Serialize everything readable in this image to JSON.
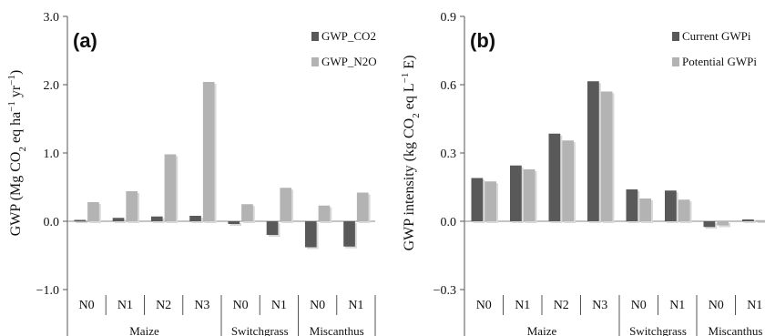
{
  "chart_data": [
    {
      "type": "bar",
      "panel_label": "(a)",
      "ylabel": "GWP (Mg CO2 eq ha−1 yr−1)",
      "ylim": [
        -1.0,
        3.0
      ],
      "yticks": [
        "−1.0",
        "0.0",
        "1.0",
        "2.0",
        "3.0"
      ],
      "ytick_values": [
        -1.0,
        0.0,
        1.0,
        2.0,
        3.0
      ],
      "categories": [
        "N0",
        "N1",
        "N2",
        "N3",
        "N0",
        "N1",
        "N0",
        "N1"
      ],
      "groups": [
        {
          "name": "Maize",
          "count": 4
        },
        {
          "name": "Switchgrass",
          "count": 2
        },
        {
          "name": "Miscanthus",
          "count": 2
        }
      ],
      "series": [
        {
          "name": "GWP_CO2",
          "color": "#595959",
          "values": [
            0.02,
            0.05,
            0.07,
            0.08,
            -0.04,
            -0.2,
            -0.38,
            -0.37
          ]
        },
        {
          "name": "GWP_N2O",
          "color": "#b3b3b3",
          "values": [
            0.28,
            0.44,
            0.98,
            2.04,
            0.25,
            0.49,
            0.23,
            0.42
          ]
        }
      ],
      "grid": false,
      "legend": "top-right"
    },
    {
      "type": "bar",
      "panel_label": "(b)",
      "ylabel": "GWP intensity (kg CO2 eq L−1 E)",
      "ylim": [
        -0.3,
        0.9
      ],
      "yticks": [
        "−0.3",
        "0.0",
        "0.3",
        "0.6",
        "0.9"
      ],
      "ytick_values": [
        -0.3,
        0.0,
        0.3,
        0.6,
        0.9
      ],
      "categories": [
        "N0",
        "N1",
        "N2",
        "N3",
        "N0",
        "N1",
        "N0",
        "N1"
      ],
      "groups": [
        {
          "name": "Maize",
          "count": 4
        },
        {
          "name": "Switchgrass",
          "count": 2
        },
        {
          "name": "Miscanthus",
          "count": 2
        }
      ],
      "series": [
        {
          "name": "Current GWPi",
          "color": "#595959",
          "values": [
            0.19,
            0.245,
            0.385,
            0.615,
            0.14,
            0.135,
            -0.025,
            0.008
          ]
        },
        {
          "name": "Potential GWPi",
          "color": "#b3b3b3",
          "values": [
            0.175,
            0.228,
            0.355,
            0.57,
            0.1,
            0.095,
            -0.018,
            0.005
          ]
        }
      ],
      "grid": false,
      "legend": "top-right"
    }
  ]
}
